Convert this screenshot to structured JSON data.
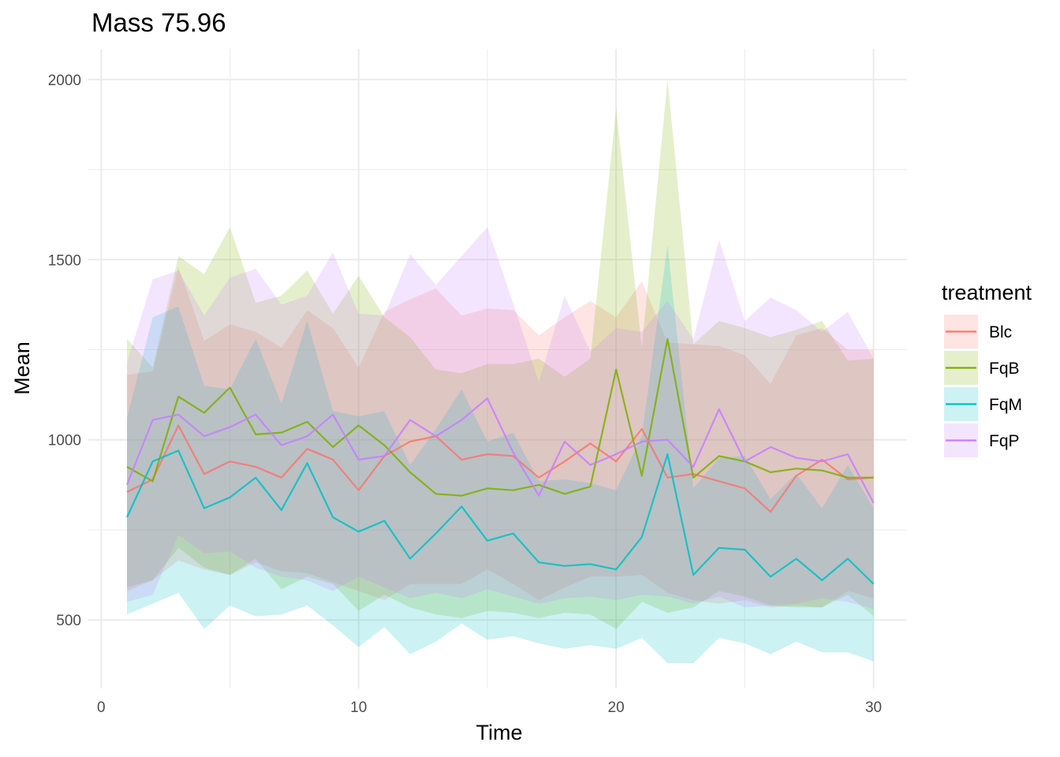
{
  "chart_data": {
    "type": "area",
    "title": "Mass 75.96",
    "xlabel": "Time",
    "ylabel": "Mean",
    "xlim": [
      -0.5,
      31.3
    ],
    "ylim": [
      310,
      2085
    ],
    "x_ticks": [
      0,
      10,
      20,
      30
    ],
    "y_ticks": [
      500,
      1000,
      1500,
      2000
    ],
    "grid": true,
    "legend_title": "treatment",
    "legend_position": "right",
    "x": [
      1,
      2,
      3,
      4,
      5,
      6,
      7,
      8,
      9,
      10,
      11,
      12,
      13,
      14,
      15,
      16,
      17,
      18,
      19,
      20,
      21,
      22,
      23,
      24,
      25,
      26,
      27,
      28,
      29,
      30
    ],
    "series": [
      {
        "name": "Blc",
        "color": "#F8766D",
        "mean": [
          855,
          890,
          1040,
          905,
          940,
          925,
          895,
          975,
          945,
          860,
          955,
          995,
          1010,
          945,
          960,
          955,
          895,
          940,
          990,
          940,
          1030,
          895,
          905,
          885,
          865,
          800,
          900,
          945,
          890,
          895
        ],
        "lower": [
          580,
          610,
          665,
          640,
          625,
          660,
          635,
          630,
          605,
          580,
          555,
          600,
          600,
          600,
          640,
          600,
          555,
          590,
          620,
          620,
          625,
          575,
          555,
          545,
          555,
          535,
          540,
          535,
          580,
          560
        ],
        "upper": [
          1180,
          1190,
          1480,
          1275,
          1320,
          1300,
          1255,
          1360,
          1310,
          1200,
          1355,
          1390,
          1420,
          1345,
          1365,
          1360,
          1290,
          1340,
          1385,
          1340,
          1440,
          1270,
          1265,
          1260,
          1235,
          1155,
          1290,
          1310,
          1250,
          1250
        ]
      },
      {
        "name": "FqB",
        "color": "#7CAE00",
        "mean": [
          925,
          885,
          1120,
          1075,
          1145,
          1015,
          1020,
          1050,
          980,
          1040,
          985,
          910,
          850,
          845,
          865,
          860,
          875,
          850,
          870,
          1195,
          900,
          1280,
          895,
          955,
          940,
          910,
          920,
          915,
          895,
          895
        ],
        "lower": [
          590,
          610,
          700,
          645,
          625,
          670,
          585,
          620,
          600,
          525,
          570,
          535,
          515,
          505,
          525,
          520,
          505,
          520,
          515,
          475,
          550,
          520,
          535,
          580,
          565,
          540,
          535,
          535,
          570,
          510
        ],
        "upper": [
          1280,
          1200,
          1510,
          1460,
          1590,
          1380,
          1400,
          1470,
          1350,
          1455,
          1340,
          1285,
          1195,
          1185,
          1210,
          1210,
          1225,
          1175,
          1225,
          1920,
          1255,
          2000,
          1265,
          1330,
          1310,
          1285,
          1305,
          1330,
          1220,
          1225
        ]
      },
      {
        "name": "FqM",
        "color": "#00BFC4",
        "mean": [
          785,
          940,
          970,
          810,
          840,
          895,
          805,
          935,
          785,
          745,
          775,
          670,
          740,
          815,
          720,
          740,
          660,
          650,
          655,
          640,
          730,
          960,
          625,
          700,
          695,
          620,
          670,
          610,
          670,
          600
        ],
        "lower": [
          515,
          545,
          575,
          475,
          540,
          510,
          515,
          540,
          485,
          425,
          480,
          405,
          440,
          490,
          445,
          455,
          435,
          420,
          430,
          420,
          450,
          380,
          380,
          450,
          435,
          405,
          440,
          410,
          410,
          385
        ],
        "upper": [
          1060,
          1340,
          1370,
          1150,
          1140,
          1280,
          1100,
          1330,
          1080,
          1065,
          1080,
          930,
          1030,
          1140,
          995,
          1020,
          885,
          890,
          880,
          860,
          1010,
          1540,
          865,
          950,
          955,
          835,
          905,
          810,
          930,
          810
        ]
      },
      {
        "name": "FqP",
        "color": "#C77CFF",
        "mean": [
          875,
          1055,
          1070,
          1010,
          1035,
          1070,
          985,
          1010,
          1070,
          945,
          955,
          1055,
          1010,
          1055,
          1115,
          965,
          845,
          995,
          930,
          960,
          995,
          1000,
          925,
          1085,
          940,
          980,
          950,
          940,
          960,
          825
        ],
        "lower": [
          550,
          570,
          735,
          685,
          690,
          645,
          620,
          610,
          580,
          620,
          590,
          560,
          575,
          560,
          585,
          565,
          545,
          560,
          565,
          555,
          570,
          565,
          545,
          565,
          535,
          540,
          545,
          560,
          550,
          530
        ],
        "upper": [
          1215,
          1445,
          1470,
          1345,
          1450,
          1475,
          1375,
          1400,
          1520,
          1350,
          1345,
          1515,
          1430,
          1510,
          1590,
          1380,
          1160,
          1400,
          1245,
          1310,
          1300,
          1385,
          1280,
          1555,
          1330,
          1395,
          1360,
          1300,
          1355,
          1225
        ]
      }
    ]
  }
}
